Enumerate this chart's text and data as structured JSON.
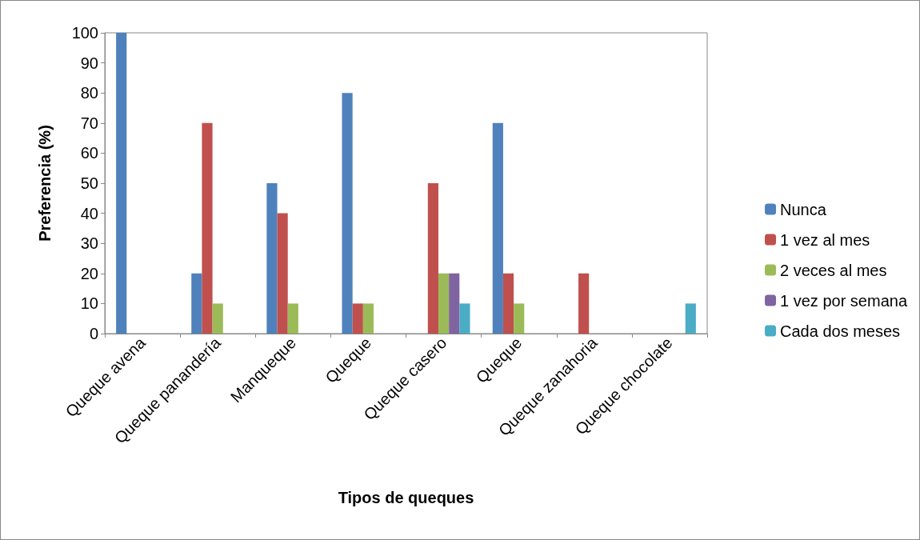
{
  "chart_data": {
    "type": "bar",
    "xlabel": "Tipos de queques",
    "ylabel": "Preferencia (%)",
    "categories": [
      "Queque avena",
      "Queque panandería",
      "Manqueque",
      "Queque",
      "Queque casero",
      "Queque",
      "Queque zanahoria",
      "Queque chocolate"
    ],
    "series": [
      {
        "name": "Nunca",
        "color": "#4f81bd",
        "values": [
          100,
          20,
          50,
          80,
          0,
          70,
          0,
          0
        ]
      },
      {
        "name": "1 vez al mes",
        "color": "#c0504d",
        "values": [
          0,
          70,
          40,
          10,
          50,
          20,
          20,
          0
        ]
      },
      {
        "name": "2 veces al mes",
        "color": "#9bbb59",
        "values": [
          0,
          10,
          10,
          10,
          20,
          10,
          0,
          0
        ]
      },
      {
        "name": "1 vez por semana",
        "color": "#8064a2",
        "values": [
          0,
          0,
          0,
          0,
          20,
          0,
          0,
          0
        ]
      },
      {
        "name": "Cada dos meses",
        "color": "#4bacc6",
        "values": [
          0,
          0,
          0,
          0,
          10,
          0,
          0,
          10
        ]
      }
    ],
    "ylim": [
      0,
      100
    ],
    "yticks": [
      0,
      10,
      20,
      30,
      40,
      50,
      60,
      70,
      80,
      90,
      100
    ],
    "grid": false,
    "legend": "right"
  }
}
